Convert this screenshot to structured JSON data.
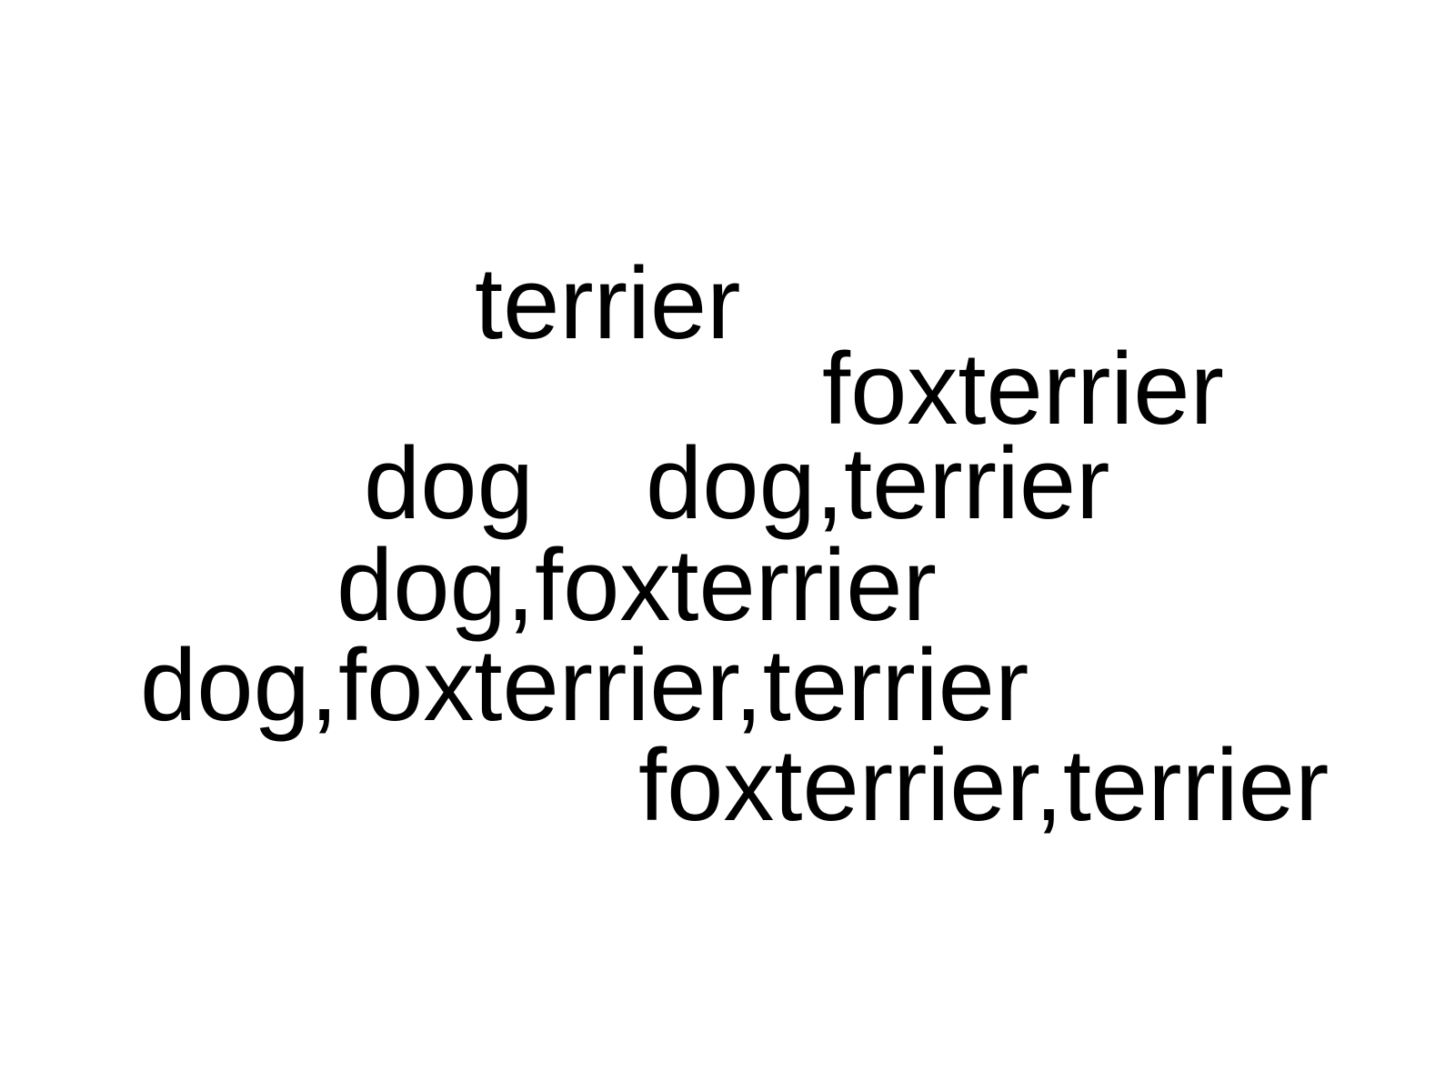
{
  "labels": {
    "terrier": "terrier",
    "foxterrier": "foxterrier",
    "dog": "dog",
    "dog_terrier": "dog,terrier",
    "dog_foxterrier": "dog,foxterrier",
    "dog_foxterrier_terrier": "dog,foxterrier,terrier",
    "foxterrier_terrier": "foxterrier,terrier"
  },
  "text_color": "#000000",
  "background_color": "#ffffff"
}
